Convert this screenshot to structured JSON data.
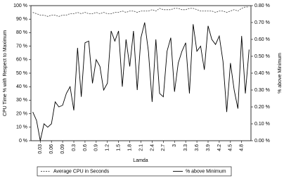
{
  "chart_data": {
    "type": "line",
    "x_label": "Lamda",
    "y_label": "CPU Time % with Respect to Maximum",
    "y2_label": "% above Minimum",
    "categories": [
      null,
      null,
      "0.03",
      null,
      null,
      "0.06",
      null,
      null,
      "0.09",
      null,
      null,
      "0.3",
      null,
      null,
      "0.6",
      null,
      null,
      "0.9",
      null,
      null,
      "1.2",
      null,
      null,
      "1.5",
      null,
      null,
      "1.8",
      null,
      null,
      "2.1",
      null,
      null,
      "2.4",
      null,
      null,
      "2.7",
      null,
      null,
      "3",
      null,
      null,
      "3.3",
      null,
      null,
      "3.6",
      null,
      null,
      "3.9",
      null,
      null,
      "4.2",
      null,
      null,
      "4.5",
      null,
      null,
      "4.8",
      null,
      null
    ],
    "series": [
      {
        "name": "Average CPU in Seconds",
        "color": "#555555",
        "dash": true,
        "axis": "y",
        "values": [
          95,
          94,
          93,
          93,
          92,
          93,
          93,
          92,
          93,
          93,
          94,
          94,
          95,
          94,
          95,
          94,
          94,
          95,
          94,
          95,
          94,
          94,
          95,
          95,
          96,
          95,
          96,
          96,
          95,
          96,
          96,
          96,
          97,
          96,
          98,
          97,
          97,
          97,
          98,
          98,
          97,
          97,
          98,
          98,
          97,
          96,
          96,
          96,
          96,
          95,
          96,
          96,
          95,
          96,
          97,
          96,
          98,
          99,
          99
        ]
      },
      {
        "name": "% above Minimum",
        "color": "#000000",
        "dash": false,
        "axis": "y2",
        "values": [
          0.17,
          0.12,
          0.0,
          0.1,
          0.08,
          0.1,
          0.23,
          0.2,
          0.21,
          0.28,
          0.32,
          0.18,
          0.55,
          0.26,
          0.58,
          0.59,
          0.34,
          0.48,
          0.44,
          0.3,
          0.34,
          0.65,
          0.59,
          0.65,
          0.32,
          0.6,
          0.44,
          0.65,
          0.3,
          0.61,
          0.7,
          0.53,
          0.23,
          0.6,
          0.28,
          0.26,
          0.53,
          0.61,
          0.29,
          0.46,
          0.53,
          0.58,
          0.28,
          0.69,
          0.53,
          0.56,
          0.42,
          0.68,
          0.6,
          0.57,
          0.62,
          0.47,
          0.17,
          0.46,
          0.3,
          0.19,
          0.62,
          0.28,
          0.54
        ]
      }
    ],
    "ylim": [
      0,
      100
    ],
    "yticks": [
      {
        "value": 0,
        "label": "0 %"
      },
      {
        "value": 10,
        "label": "10 %"
      },
      {
        "value": 20,
        "label": "20 %"
      },
      {
        "value": 30,
        "label": "30 %"
      },
      {
        "value": 40,
        "label": "40 %"
      },
      {
        "value": 50,
        "label": "50 %"
      },
      {
        "value": 60,
        "label": "60 %"
      },
      {
        "value": 70,
        "label": "70 %"
      },
      {
        "value": 80,
        "label": "80 %"
      },
      {
        "value": 90,
        "label": "90 %"
      },
      {
        "value": 100,
        "label": "100 %"
      }
    ],
    "y2lim": [
      0,
      0.8
    ],
    "y2ticks": [
      {
        "value": 0,
        "label": "0.00 %"
      },
      {
        "value": 0.1,
        "label": "0.10 %"
      },
      {
        "value": 0.2,
        "label": "0.20 %"
      },
      {
        "value": 0.3,
        "label": "0.30 %"
      },
      {
        "value": 0.4,
        "label": "0.40 %"
      },
      {
        "value": 0.5,
        "label": "0.50 %"
      },
      {
        "value": 0.6,
        "label": "0.60 %"
      },
      {
        "value": 0.7,
        "label": "0.70 %"
      },
      {
        "value": 0.8,
        "label": "0.80 %"
      }
    ]
  }
}
